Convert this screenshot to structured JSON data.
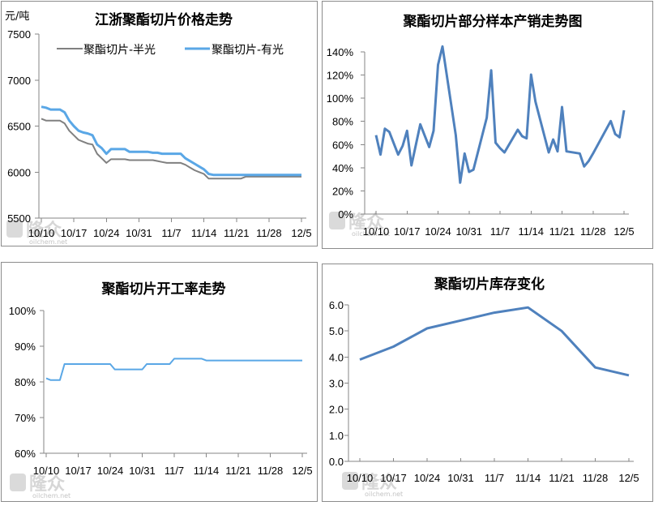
{
  "watermark": {
    "brand": "隆众",
    "site": "oilchem.net"
  },
  "chart_data": [
    {
      "type": "line",
      "title": "江浙聚酯切片价格走势",
      "unit_label": "元/吨",
      "ylim": [
        5500,
        7500
      ],
      "y_ticks": [
        "5500",
        "6000",
        "6500",
        "7000",
        "7500"
      ],
      "x_tick_labels": [
        "10/10",
        "10/17",
        "10/24",
        "10/31",
        "11/7",
        "11/14",
        "11/21",
        "11/28",
        "12/5"
      ],
      "legend_position": "top",
      "grid": false,
      "series": [
        {
          "name": "聚酯切片-半光",
          "color": "#808080",
          "x": [
            "10/10",
            "10/11",
            "10/12",
            "10/13",
            "10/14",
            "10/15",
            "10/16",
            "10/17",
            "10/18",
            "10/19",
            "10/20",
            "10/21",
            "10/22",
            "10/23",
            "10/24",
            "10/25",
            "10/26",
            "10/27",
            "10/28",
            "10/29",
            "10/30",
            "10/31",
            "11/1",
            "11/2",
            "11/3",
            "11/4",
            "11/5",
            "11/6",
            "11/7",
            "11/8",
            "11/9",
            "11/10",
            "11/11",
            "11/12",
            "11/13",
            "11/14",
            "11/15",
            "11/16",
            "11/17",
            "11/18",
            "11/19",
            "11/20",
            "11/21",
            "11/22",
            "11/23",
            "11/24",
            "11/25",
            "11/26",
            "11/27",
            "11/28",
            "11/29",
            "11/30",
            "12/1",
            "12/2",
            "12/3",
            "12/4",
            "12/5"
          ],
          "values": [
            6580,
            6560,
            6560,
            6560,
            6560,
            6530,
            6450,
            6400,
            6350,
            6330,
            6310,
            6300,
            6200,
            6150,
            6100,
            6140,
            6140,
            6140,
            6140,
            6130,
            6130,
            6130,
            6130,
            6130,
            6130,
            6120,
            6110,
            6100,
            6100,
            6100,
            6100,
            6080,
            6050,
            6020,
            6000,
            5980,
            5930,
            5930,
            5930,
            5930,
            5930,
            5930,
            5930,
            5930,
            5950,
            5950,
            5950,
            5950,
            5950,
            5950,
            5950,
            5950,
            5950,
            5950,
            5950,
            5950,
            5950
          ]
        },
        {
          "name": "聚酯切片-有光",
          "color": "#5aa7e6",
          "x": [
            "10/10",
            "10/11",
            "10/12",
            "10/13",
            "10/14",
            "10/15",
            "10/16",
            "10/17",
            "10/18",
            "10/19",
            "10/20",
            "10/21",
            "10/22",
            "10/23",
            "10/24",
            "10/25",
            "10/26",
            "10/27",
            "10/28",
            "10/29",
            "10/30",
            "10/31",
            "11/1",
            "11/2",
            "11/3",
            "11/4",
            "11/5",
            "11/6",
            "11/7",
            "11/8",
            "11/9",
            "11/10",
            "11/11",
            "11/12",
            "11/13",
            "11/14",
            "11/15",
            "11/16",
            "11/17",
            "11/18",
            "11/19",
            "11/20",
            "11/21",
            "11/22",
            "11/23",
            "11/24",
            "11/25",
            "11/26",
            "11/27",
            "11/28",
            "11/29",
            "11/30",
            "12/1",
            "12/2",
            "12/3",
            "12/4",
            "12/5"
          ],
          "values": [
            6710,
            6700,
            6680,
            6680,
            6680,
            6650,
            6560,
            6500,
            6450,
            6430,
            6420,
            6400,
            6300,
            6260,
            6200,
            6250,
            6250,
            6250,
            6250,
            6220,
            6220,
            6220,
            6220,
            6220,
            6210,
            6210,
            6200,
            6200,
            6200,
            6200,
            6200,
            6150,
            6120,
            6090,
            6060,
            6030,
            5980,
            5970,
            5970,
            5970,
            5970,
            5970,
            5970,
            5970,
            5970,
            5970,
            5970,
            5970,
            5970,
            5970,
            5970,
            5970,
            5970,
            5970,
            5970,
            5970,
            5970
          ]
        }
      ]
    },
    {
      "type": "line",
      "title": "聚酯切片部分样本产销走势图",
      "ylim": [
        0,
        150
      ],
      "y_ticks": [
        "0%",
        "20%",
        "40%",
        "60%",
        "80%",
        "100%",
        "120%",
        "140%"
      ],
      "x_tick_labels": [
        "10/10",
        "10/17",
        "10/24",
        "10/31",
        "11/7",
        "11/14",
        "11/21",
        "11/28",
        "12/5"
      ],
      "grid": false,
      "series": [
        {
          "color": "#4f81bd",
          "x": [
            "10/10",
            "10/11",
            "10/12",
            "10/13",
            "10/15",
            "10/16",
            "10/17",
            "10/18",
            "10/20",
            "10/22",
            "10/23",
            "10/24",
            "10/25",
            "10/28",
            "10/29",
            "10/30",
            "10/31",
            "11/1",
            "11/4",
            "11/5",
            "11/6",
            "11/7",
            "11/8",
            "11/11",
            "11/12",
            "11/13",
            "11/14",
            "11/15",
            "11/18",
            "11/19",
            "11/20",
            "11/21",
            "11/22",
            "11/25",
            "11/26",
            "11/27",
            "11/28",
            "12/2",
            "12/3",
            "12/4",
            "12/5"
          ],
          "values": [
            73,
            55,
            79,
            76,
            55,
            63,
            77,
            45,
            83,
            62,
            77,
            138,
            155,
            73,
            29,
            56,
            39,
            41,
            89,
            133,
            66,
            61,
            57,
            78,
            72,
            70,
            129,
            104,
            57,
            69,
            58,
            99,
            58,
            56,
            44,
            49,
            56,
            86,
            74,
            71,
            96
          ]
        }
      ]
    },
    {
      "type": "line",
      "title": "聚酯切片开工率走势",
      "ylim": [
        60,
        100
      ],
      "y_ticks": [
        "60%",
        "70%",
        "80%",
        "90%",
        "100%"
      ],
      "x_tick_labels": [
        "10/10",
        "10/17",
        "10/24",
        "10/31",
        "11/7",
        "11/14",
        "11/21",
        "11/28",
        "12/5"
      ],
      "grid": false,
      "series": [
        {
          "color": "#5aa7e6",
          "x": [
            "10/10",
            "10/11",
            "10/12",
            "10/13",
            "10/14",
            "10/15",
            "10/16",
            "10/17",
            "10/18",
            "10/19",
            "10/20",
            "10/21",
            "10/22",
            "10/23",
            "10/24",
            "10/25",
            "10/26",
            "10/27",
            "10/28",
            "10/29",
            "10/30",
            "10/31",
            "11/1",
            "11/2",
            "11/3",
            "11/4",
            "11/5",
            "11/6",
            "11/7",
            "11/8",
            "11/9",
            "11/10",
            "11/11",
            "11/12",
            "11/13",
            "11/14",
            "11/15",
            "11/16",
            "11/17",
            "11/18",
            "11/19",
            "11/20",
            "11/21",
            "11/22",
            "11/23",
            "11/24",
            "11/25",
            "11/26",
            "11/27",
            "11/28",
            "11/29",
            "11/30",
            "12/1",
            "12/2",
            "12/3",
            "12/4",
            "12/5"
          ],
          "values": [
            81,
            80.5,
            80.5,
            80.5,
            85,
            85,
            85,
            85,
            85,
            85,
            85,
            85,
            85,
            85,
            85,
            83.5,
            83.5,
            83.5,
            83.5,
            83.5,
            83.5,
            83.5,
            85,
            85,
            85,
            85,
            85,
            85,
            86.5,
            86.5,
            86.5,
            86.5,
            86.5,
            86.5,
            86.5,
            86,
            86,
            86,
            86,
            86,
            86,
            86,
            86,
            86,
            86,
            86,
            86,
            86,
            86,
            86,
            86,
            86,
            86,
            86,
            86,
            86,
            86
          ]
        }
      ]
    },
    {
      "type": "line",
      "title": "聚酯切片库存变化",
      "ylim": [
        0,
        6
      ],
      "y_ticks": [
        "0.0",
        "1.0",
        "2.0",
        "3.0",
        "4.0",
        "5.0",
        "6.0"
      ],
      "x_tick_labels": [
        "10/10",
        "10/17",
        "10/24",
        "10/31",
        "11/7",
        "11/14",
        "11/21",
        "11/28",
        "12/5"
      ],
      "grid": false,
      "series": [
        {
          "color": "#4f81bd",
          "x": [
            "10/10",
            "10/17",
            "10/24",
            "10/31",
            "11/7",
            "11/14",
            "11/21",
            "11/28",
            "12/5"
          ],
          "values": [
            3.9,
            4.4,
            5.1,
            5.4,
            5.7,
            5.9,
            5.0,
            3.6,
            3.3
          ]
        }
      ]
    }
  ]
}
